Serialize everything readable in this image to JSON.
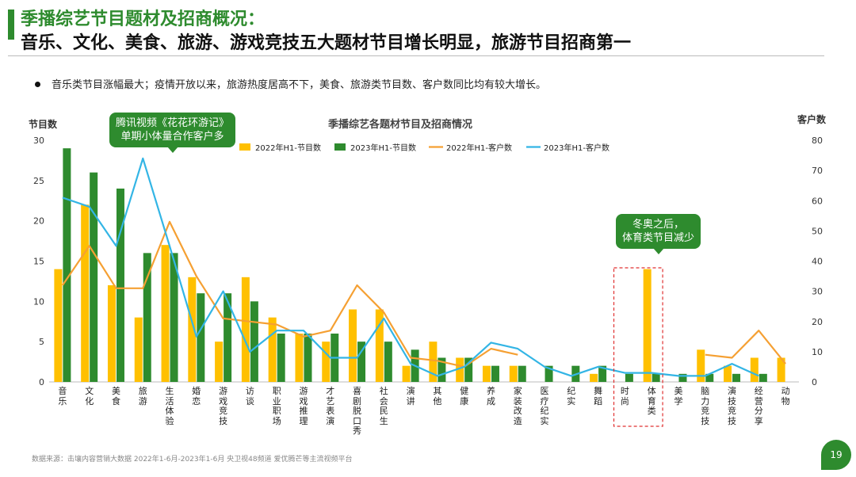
{
  "header": {
    "title_line1": "季播综艺节目题材及招商概况：",
    "title_line2": "音乐、文化、美食、旅游、游戏竞技五大题材节目增长明显，旅游节目招商第一"
  },
  "bullet": "音乐类节目涨幅最大；疫情开放以来，旅游热度居高不下，美食、旅游类节目数、客户数同比均有较大增长。",
  "source": "数据来源：击壤内容营销大数据 2022年1-6月-2023年1-6月 央卫视48频道  爱优腾芒等主流视频平台",
  "page_number": "19",
  "callouts": {
    "c1_line1": "腾讯视频《花花环游记》",
    "c1_line2": "单期小体量合作客户多",
    "c2_line1": "冬奥之后，",
    "c2_line2": "体育类节目减少"
  },
  "colors": {
    "bar2022": "#ffc000",
    "bar2023": "#2e8b2e",
    "line2022": "#f5a033",
    "line2023": "#33b5e5",
    "highlight": "#e03030"
  },
  "chart_data": {
    "type": "bar",
    "title": "季播综艺各题材节目及招商情况",
    "ylabel": "节目数",
    "y2label": "客户数",
    "ylim": [
      0,
      30
    ],
    "y2lim": [
      0,
      80
    ],
    "yticks": [
      "0",
      "5",
      "10",
      "15",
      "20",
      "25",
      "30"
    ],
    "y2ticks": [
      "0",
      "10",
      "20",
      "30",
      "40",
      "50",
      "60",
      "70",
      "80"
    ],
    "legend_position": "top",
    "categories": [
      "音乐",
      "文化",
      "美食",
      "旅游",
      "生活体验",
      "婚恋",
      "游戏竞技",
      "访谈",
      "职业职场",
      "游戏推理",
      "才艺表演",
      "喜剧脱口秀",
      "社会民生",
      "演讲",
      "其他",
      "健康",
      "养成",
      "家装改造",
      "医疗纪实",
      "纪实",
      "舞蹈",
      "时尚",
      "体育类",
      "美学",
      "脑力竞技",
      "演技竞技",
      "经营分享",
      "动物"
    ],
    "series": [
      {
        "name": "2022年H1-节目数",
        "kind": "bar",
        "axis": "left",
        "values": [
          14,
          22,
          12,
          8,
          17,
          13,
          5,
          13,
          8,
          6,
          5,
          9,
          9,
          2,
          5,
          3,
          2,
          2,
          0,
          0,
          1,
          0,
          14,
          0,
          4,
          2,
          3,
          3
        ]
      },
      {
        "name": "2023年H1-节目数",
        "kind": "bar",
        "axis": "left",
        "values": [
          29,
          26,
          24,
          16,
          16,
          11,
          11,
          10,
          6,
          6,
          6,
          5,
          5,
          4,
          3,
          3,
          2,
          2,
          2,
          2,
          2,
          1,
          1,
          1,
          1,
          1,
          1,
          0
        ]
      },
      {
        "name": "2022年H1-客户数",
        "kind": "line",
        "axis": "right",
        "values": [
          32,
          45,
          31,
          31,
          53,
          35,
          21,
          20,
          19,
          15,
          17,
          32,
          23,
          8,
          7,
          5,
          11,
          9,
          null,
          null,
          null,
          null,
          null,
          null,
          9,
          8,
          17,
          6
        ]
      },
      {
        "name": "2023年H1-客户数",
        "kind": "line",
        "axis": "right",
        "values": [
          61,
          58,
          45,
          74,
          45,
          15,
          30,
          10,
          17,
          17,
          8,
          8,
          21,
          6,
          2,
          5,
          13,
          11,
          5,
          2,
          5,
          3,
          3,
          2,
          2,
          6,
          2,
          null
        ]
      }
    ]
  }
}
